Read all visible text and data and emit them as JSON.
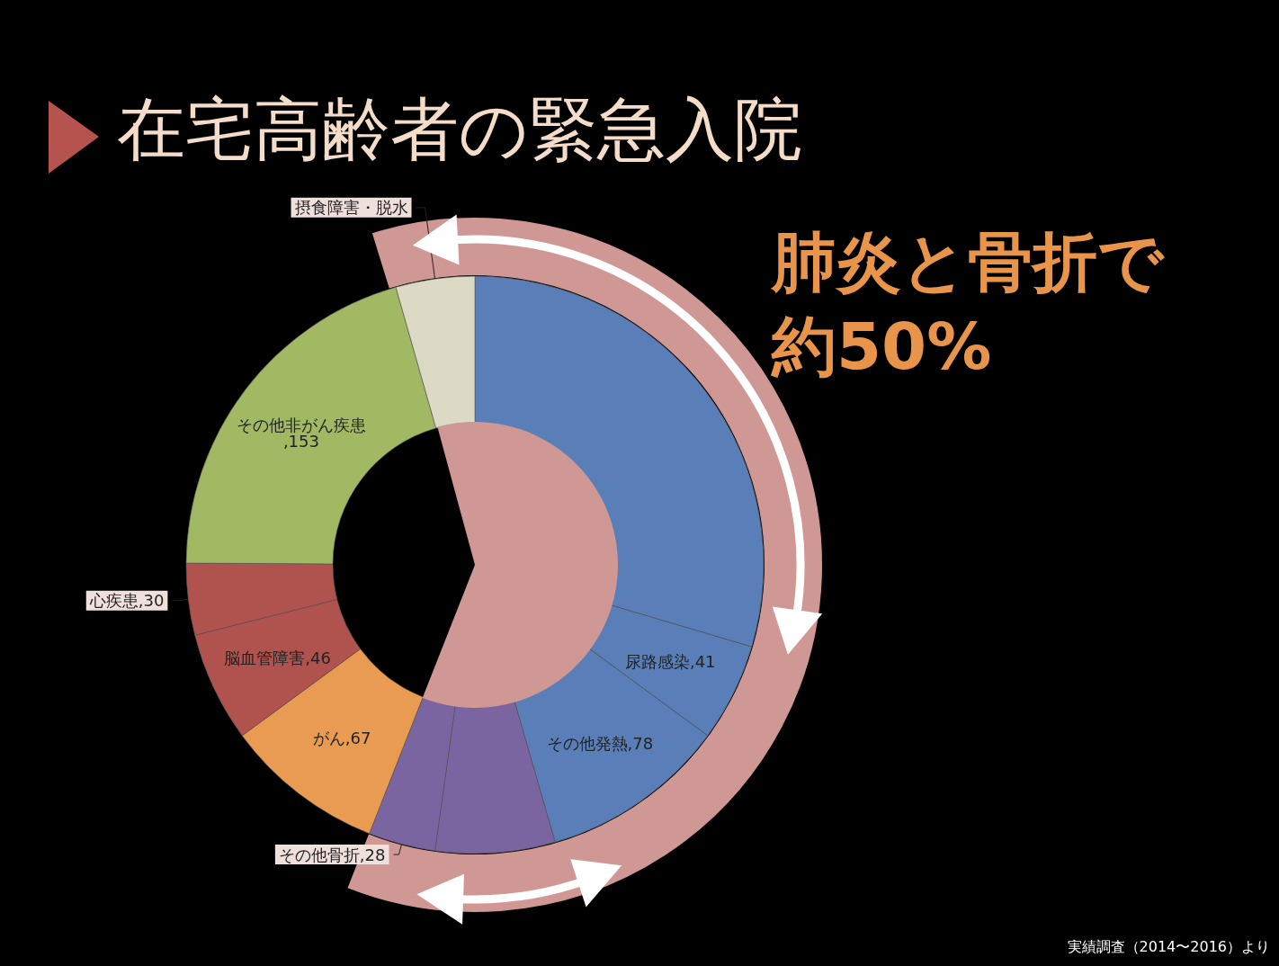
{
  "chart_data": {
    "type": "donut",
    "title": "在宅高齢者の緊急入院",
    "categories": [
      null,
      "尿路感染",
      "その他発熱",
      null,
      "その他骨折",
      "がん",
      "脳血管障害",
      "心疾患",
      "その他非がん疾患",
      "摂食障害・脱水"
    ],
    "values": [
      221,
      41,
      78,
      50,
      28,
      67,
      46,
      30,
      153,
      33
    ],
    "value_labels": [
      null,
      ",41",
      ",78",
      null,
      ",28",
      ",67",
      ",46",
      ",30",
      ",153",
      null
    ],
    "colors": [
      "#5a7fb8",
      "#5a7fb8",
      "#5a7fb8",
      "#7b65a0",
      "#7b65a0",
      "#e99b52",
      "#b0534f",
      "#b0534f",
      "#a1b963",
      "#dcd9c5"
    ],
    "annotations": [
      "肺炎と骨折で約50%",
      "実績調査（2014〜2016）より"
    ]
  }
}
